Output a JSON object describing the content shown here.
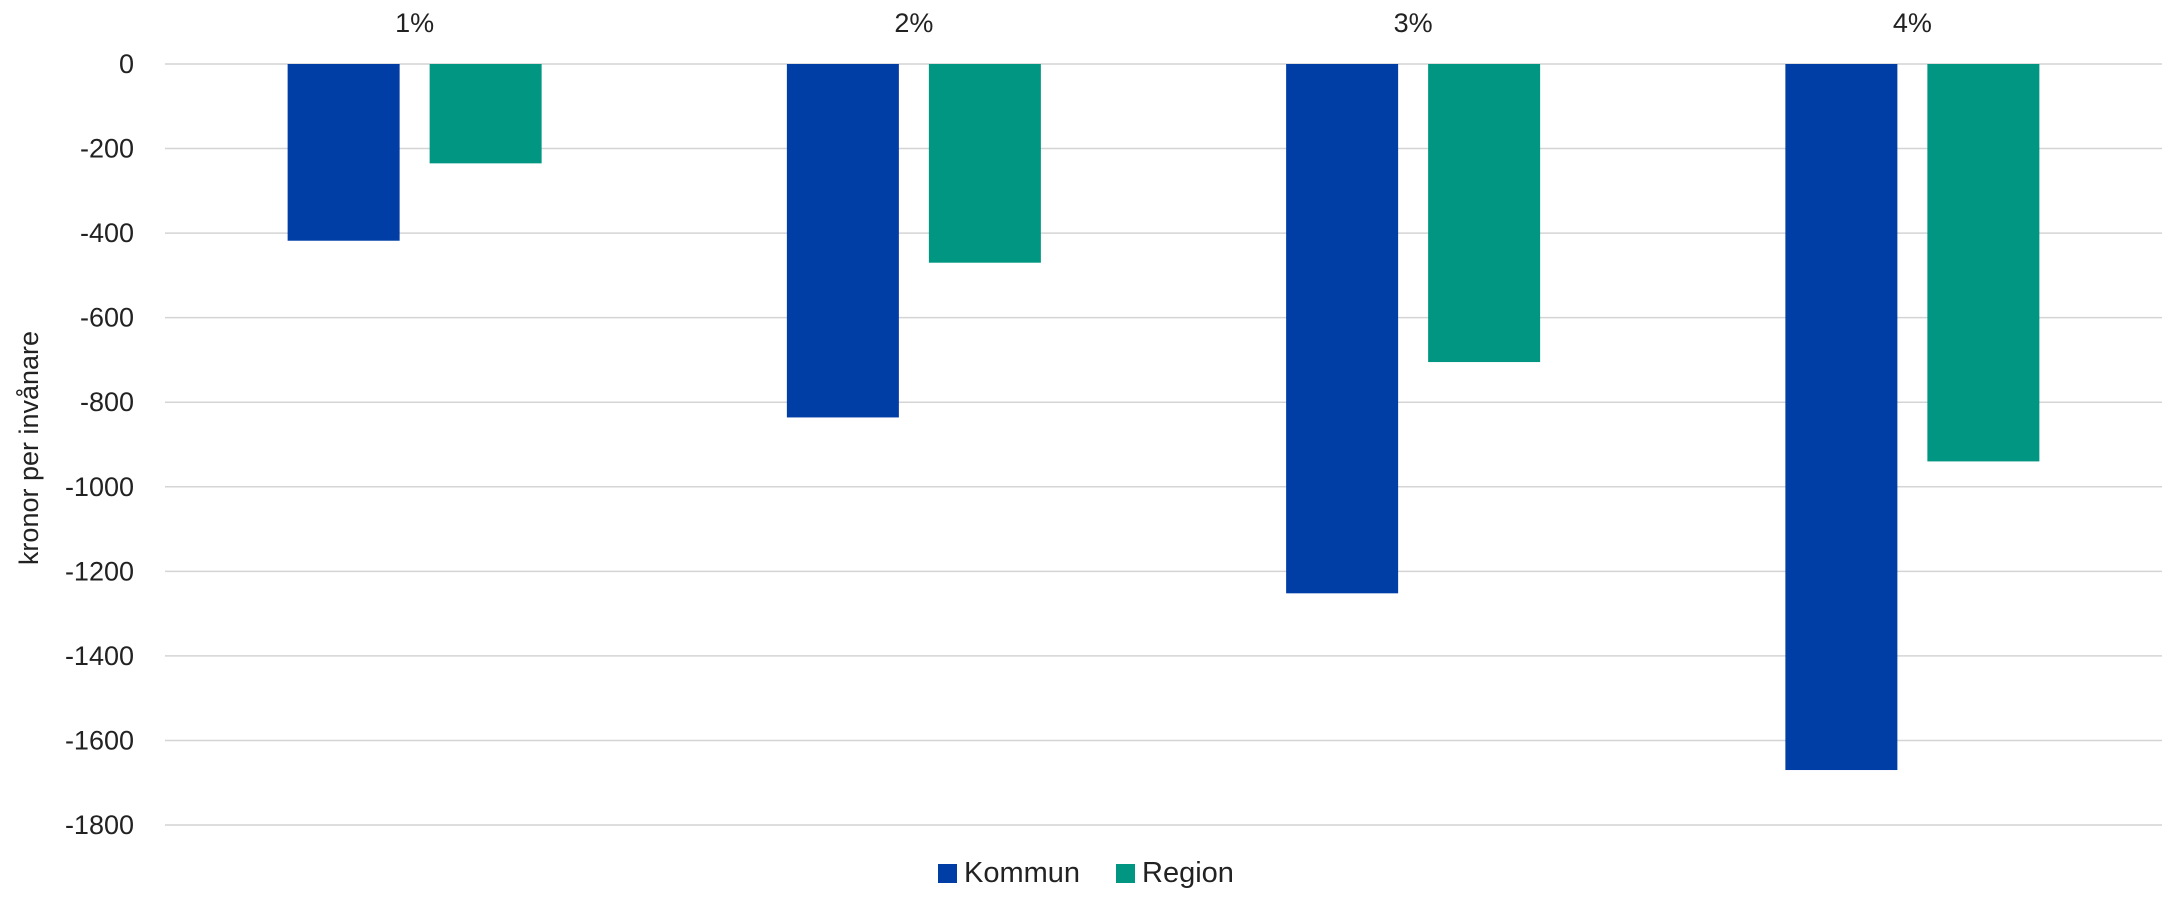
{
  "chart_data": {
    "type": "bar",
    "categories": [
      "1%",
      "2%",
      "3%",
      "4%"
    ],
    "series": [
      {
        "name": "Kommun",
        "color": "#003DA5",
        "values": [
          -418,
          -836,
          -1252,
          -1670
        ]
      },
      {
        "name": "Region",
        "color": "#009681",
        "values": [
          -235,
          -470,
          -705,
          -940
        ]
      }
    ],
    "title": "",
    "xlabel": "",
    "ylabel": "kronor per invånare",
    "ylim": [
      -1800,
      0
    ],
    "yticks": [
      0,
      -200,
      -400,
      -600,
      -800,
      -1000,
      -1200,
      -1400,
      -1600,
      -1800
    ],
    "grid": true,
    "category_axis_position": "top",
    "legend_position": "bottom-center"
  }
}
